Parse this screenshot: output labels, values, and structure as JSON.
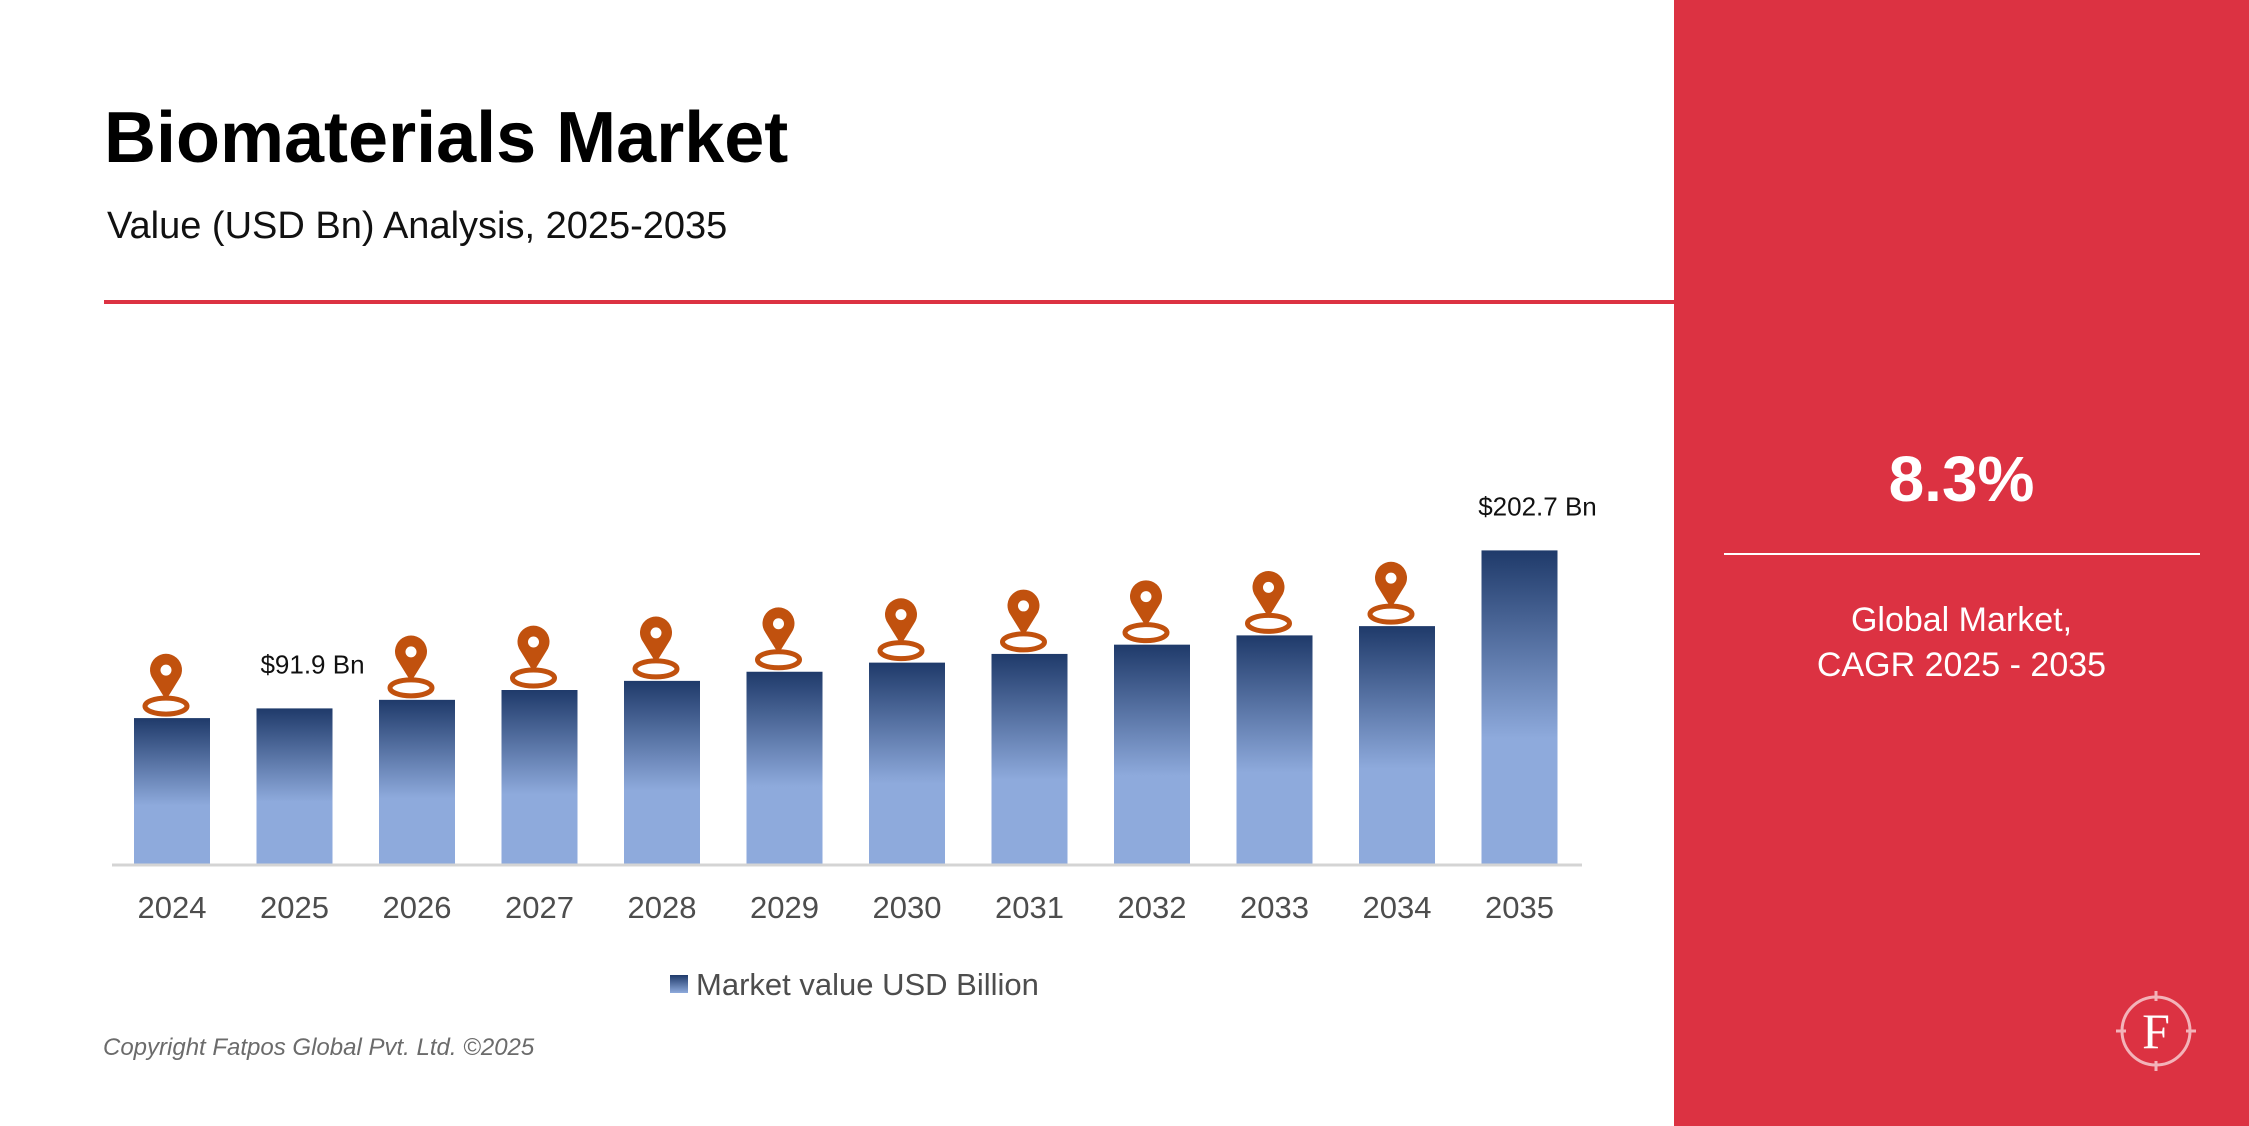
{
  "header": {
    "title": "Biomaterials Market",
    "subtitle": "Value (USD Bn) Analysis, 2025-2035"
  },
  "colors": {
    "accent_red": "#dc3242",
    "bar_top": "#1f3a6a",
    "bar_bottom": "#8eaadc",
    "marker": "#c1510e",
    "axis_text": "#4d4d4d"
  },
  "chart_data": {
    "type": "bar",
    "categories": [
      "2024",
      "2025",
      "2026",
      "2027",
      "2028",
      "2029",
      "2030",
      "2031",
      "2032",
      "2033",
      "2034",
      "2035"
    ],
    "series": [
      {
        "name": "Market value USD Billion",
        "values": [
          85.1,
          91.9,
          97.9,
          104.8,
          111.2,
          117.6,
          124.0,
          130.1,
          136.6,
          143.1,
          149.6,
          202.7
        ]
      }
    ],
    "data_labels": [
      {
        "category": "2025",
        "text": "$91.9 Bn"
      },
      {
        "category": "2035",
        "text": "$202.7 Bn"
      }
    ],
    "markers": {
      "icon": "location-pin-icon",
      "categories": [
        "2024",
        "2026",
        "2027",
        "2028",
        "2029",
        "2030",
        "2031",
        "2032",
        "2033",
        "2034"
      ]
    },
    "xlabel": "",
    "ylabel": "",
    "grid": false,
    "legend_position": "bottom"
  },
  "legend": {
    "label": "Market value USD Billion"
  },
  "footer": {
    "copyright": "Copyright Fatpos Global Pvt. Ltd. ©2025"
  },
  "side_panel": {
    "cagr_value": "8.3%",
    "caption_line1": "Global Market,",
    "caption_line2": "CAGR 2025 - 2035",
    "logo_letter": "F",
    "logo_icon": "compass-logo-icon"
  }
}
